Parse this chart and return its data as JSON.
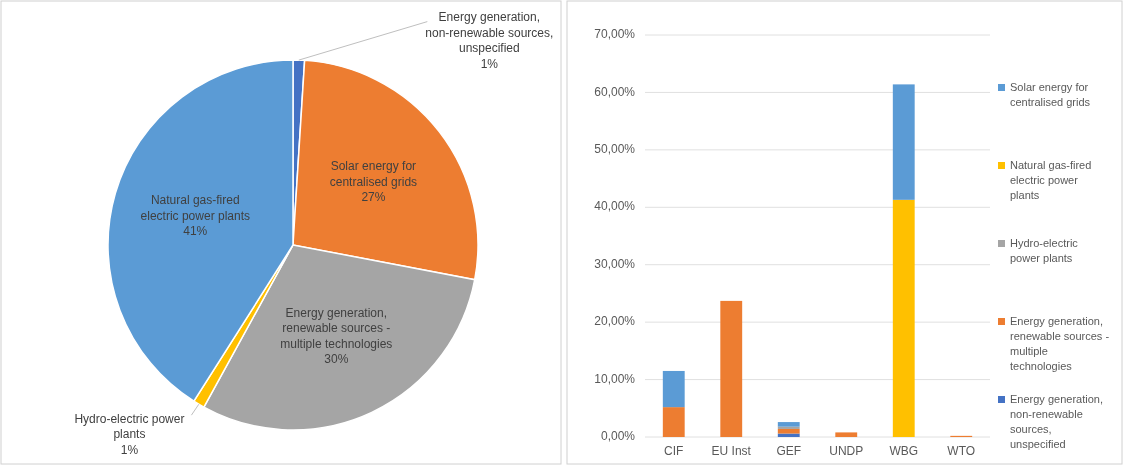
{
  "chart_data": [
    {
      "type": "pie",
      "categories": [
        "Energy generation, non-renewable sources, unspecified",
        "Solar energy for centralised grids",
        "Energy generation, renewable sources - multiple technologies",
        "Hydro-electric power plants",
        "Natural gas-fired electric power plants"
      ],
      "values": [
        1,
        27,
        30,
        1,
        41
      ],
      "colors": [
        "#4472c4",
        "#ed7d31",
        "#a5a5a5",
        "#ffc000",
        "#5b9bd5"
      ],
      "value_labels": [
        "1%",
        "27%",
        "30%",
        "1%",
        "41%"
      ]
    },
    {
      "type": "bar",
      "stacked": true,
      "categories": [
        "CIF",
        "EU Inst",
        "GEF",
        "UNDP",
        "WBG",
        "WTO"
      ],
      "series": [
        {
          "name": "Energy generation, non-renewable sources, unspecified",
          "color": "#4472c4",
          "values": [
            0,
            0,
            0.6,
            0,
            0,
            0
          ]
        },
        {
          "name": "Energy generation, renewable sources - multiple technologies",
          "color": "#ed7d31",
          "values": [
            5.2,
            23.7,
            0.8,
            0.8,
            0,
            0.2
          ]
        },
        {
          "name": "Hydro-electric power plants",
          "color": "#a5a5a5",
          "values": [
            0,
            0,
            0.4,
            0,
            0,
            0
          ]
        },
        {
          "name": "Natural gas-fired electric power plants",
          "color": "#ffc000",
          "values": [
            0,
            0,
            0,
            0,
            41.3,
            0
          ]
        },
        {
          "name": "Solar energy for centralised grids",
          "color": "#5b9bd5",
          "values": [
            6.3,
            0,
            0.8,
            0,
            20.1,
            0
          ]
        }
      ],
      "ylim": [
        0,
        70
      ],
      "yticks": [
        {
          "value": 0,
          "label": "0,00%"
        },
        {
          "value": 10,
          "label": "10,00%"
        },
        {
          "value": 20,
          "label": "20,00%"
        },
        {
          "value": 30,
          "label": "30,00%"
        },
        {
          "value": 40,
          "label": "40,00%"
        },
        {
          "value": 50,
          "label": "50,00%"
        },
        {
          "value": 60,
          "label": "60,00%"
        },
        {
          "value": 70,
          "label": "70,00%"
        }
      ],
      "grid": "y",
      "legend": "right"
    }
  ]
}
